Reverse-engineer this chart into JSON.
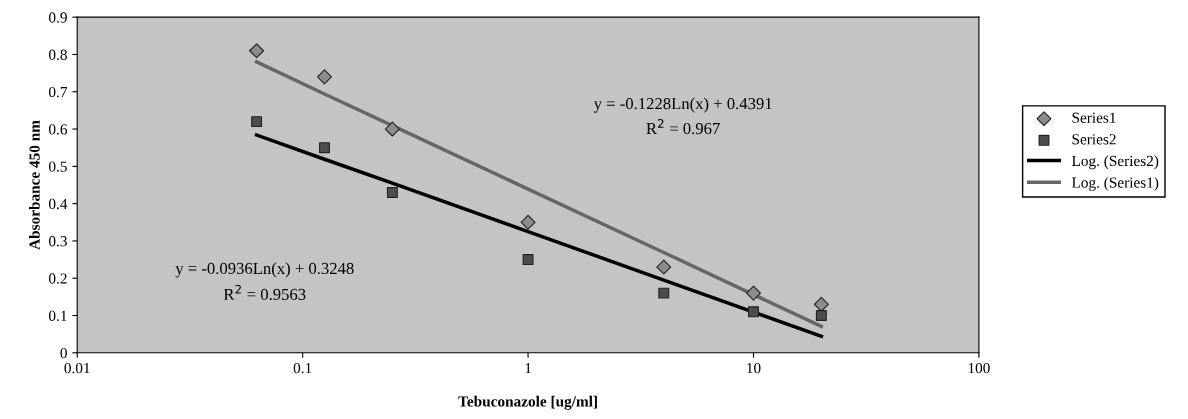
{
  "chart_data": {
    "type": "scatter",
    "xlabel": "Tebuconazole [ug/ml]",
    "ylabel": "Absorbance 450 nm",
    "x": [
      0.0625,
      0.125,
      0.25,
      1,
      4,
      10,
      20
    ],
    "series": [
      {
        "name": "Series1",
        "marker": "diamond",
        "color": "#8c8c8c",
        "values": [
          0.81,
          0.74,
          0.6,
          0.35,
          0.23,
          0.16,
          0.13
        ]
      },
      {
        "name": "Series2",
        "marker": "square",
        "color": "#4d4d4d",
        "values": [
          0.62,
          0.55,
          0.43,
          0.25,
          0.16,
          0.11,
          0.1
        ]
      },
      {
        "name": "Log. (Series2)",
        "type": "line",
        "color": "#000000",
        "values": [
          0.584,
          0.519,
          0.455,
          0.325,
          0.195,
          0.109,
          0.044
        ]
      },
      {
        "name": "Log. (Series1)",
        "type": "line",
        "color": "#666666",
        "values": [
          0.78,
          0.694,
          0.609,
          0.439,
          0.269,
          0.156,
          0.071
        ]
      }
    ],
    "log": "x",
    "xlim": [
      0.01,
      100
    ],
    "xticks": [
      0.01,
      0.1,
      1,
      10,
      100
    ],
    "ylim": [
      0,
      0.9
    ],
    "yticks": [
      0,
      0.1,
      0.2,
      0.3,
      0.4,
      0.5,
      0.6,
      0.7,
      0.8,
      0.9
    ],
    "annotations": [
      "y = -0.1228Ln(x) + 0.4391",
      "R$^{2}$ = 0.967",
      "y = -0.0936Ln(x) + 0.3248",
      "R$^{2}$ = 0.9563"
    ],
    "grid": false,
    "legend": "right"
  }
}
